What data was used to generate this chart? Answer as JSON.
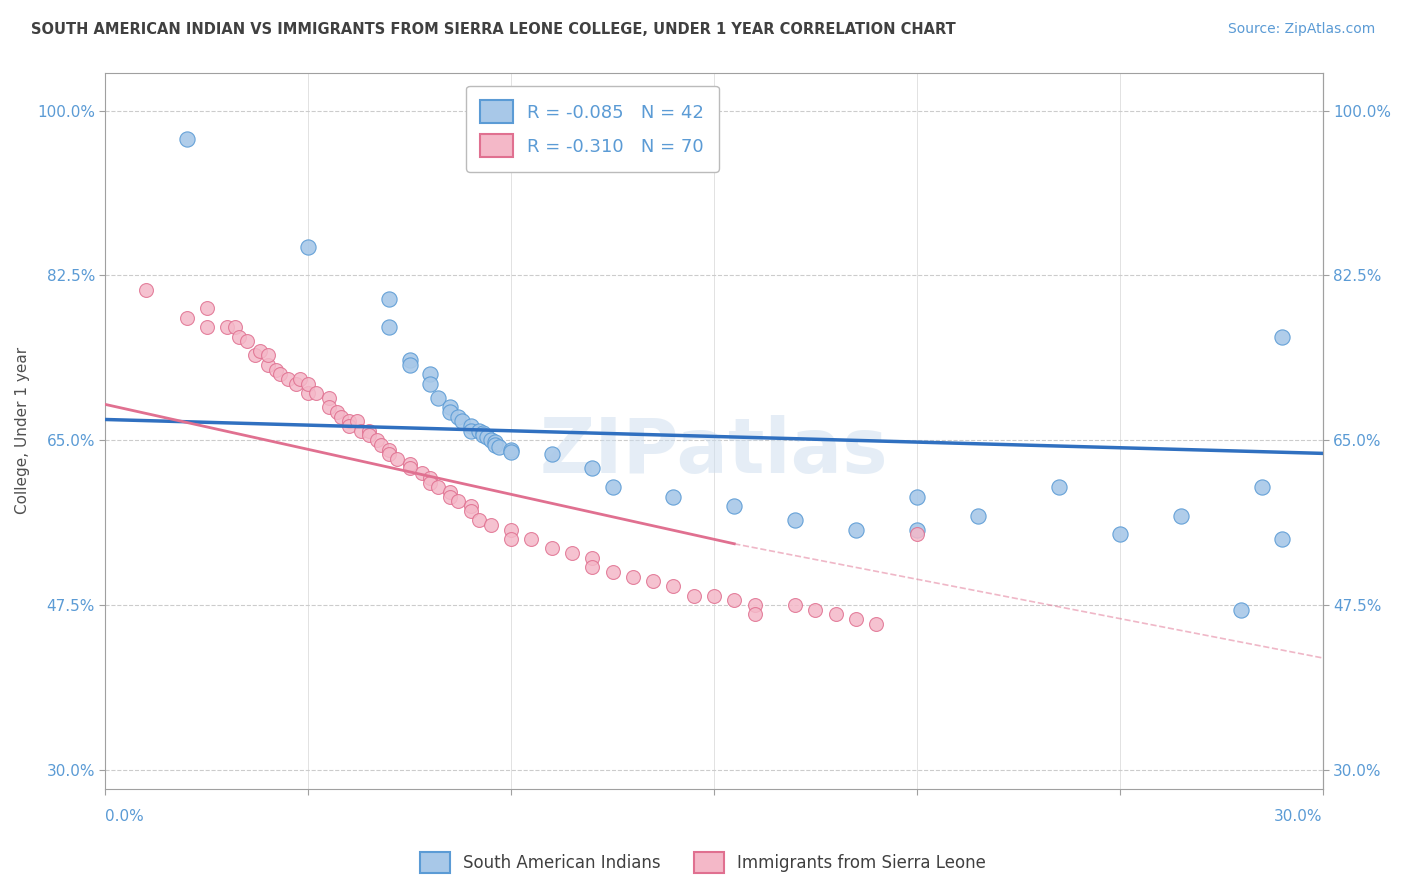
{
  "title": "SOUTH AMERICAN INDIAN VS IMMIGRANTS FROM SIERRA LEONE COLLEGE, UNDER 1 YEAR CORRELATION CHART",
  "source": "Source: ZipAtlas.com",
  "ylabel": "College, Under 1 year",
  "watermark": "ZIPatlas",
  "legend_blue_R": "-0.085",
  "legend_blue_N": "42",
  "legend_pink_R": "-0.310",
  "legend_pink_N": "70",
  "blue_color": "#A8C8E8",
  "blue_edge_color": "#5B9BD5",
  "pink_color": "#F4B8C8",
  "pink_edge_color": "#E07090",
  "blue_line_color": "#3070C0",
  "pink_line_color": "#E07090",
  "background_color": "#FFFFFF",
  "grid_color": "#CCCCCC",
  "axis_color": "#A0A0A0",
  "title_color": "#404040",
  "source_color": "#5B9BD5",
  "tick_color": "#5B9BD5",
  "xlim": [
    0.0,
    0.3
  ],
  "ylim": [
    0.28,
    1.04
  ],
  "yticks": [
    1.0,
    0.825,
    0.65,
    0.475,
    0.3
  ],
  "ytick_labels": [
    "100.0%",
    "82.5%",
    "65.0%",
    "47.5%",
    "30.0%"
  ],
  "blue_scatter_x": [
    0.02,
    0.05,
    0.07,
    0.07,
    0.075,
    0.075,
    0.08,
    0.08,
    0.082,
    0.085,
    0.085,
    0.087,
    0.088,
    0.09,
    0.09,
    0.092,
    0.093,
    0.093,
    0.094,
    0.095,
    0.096,
    0.096,
    0.097,
    0.1,
    0.1,
    0.11,
    0.12,
    0.125,
    0.14,
    0.155,
    0.17,
    0.185,
    0.2,
    0.2,
    0.215,
    0.235,
    0.25,
    0.265,
    0.285,
    0.29,
    0.29,
    0.28
  ],
  "blue_scatter_y": [
    0.97,
    0.855,
    0.8,
    0.77,
    0.735,
    0.73,
    0.72,
    0.71,
    0.695,
    0.685,
    0.68,
    0.675,
    0.67,
    0.665,
    0.66,
    0.66,
    0.658,
    0.655,
    0.653,
    0.65,
    0.648,
    0.645,
    0.643,
    0.64,
    0.638,
    0.635,
    0.62,
    0.6,
    0.59,
    0.58,
    0.565,
    0.555,
    0.59,
    0.555,
    0.57,
    0.6,
    0.55,
    0.57,
    0.6,
    0.76,
    0.545,
    0.47
  ],
  "pink_scatter_x": [
    0.01,
    0.02,
    0.025,
    0.025,
    0.03,
    0.032,
    0.033,
    0.035,
    0.037,
    0.038,
    0.04,
    0.04,
    0.042,
    0.043,
    0.045,
    0.047,
    0.048,
    0.05,
    0.05,
    0.052,
    0.055,
    0.055,
    0.057,
    0.058,
    0.06,
    0.06,
    0.062,
    0.063,
    0.065,
    0.065,
    0.067,
    0.068,
    0.07,
    0.07,
    0.072,
    0.075,
    0.075,
    0.078,
    0.08,
    0.08,
    0.082,
    0.085,
    0.085,
    0.087,
    0.09,
    0.09,
    0.092,
    0.095,
    0.1,
    0.1,
    0.105,
    0.11,
    0.115,
    0.12,
    0.12,
    0.125,
    0.13,
    0.135,
    0.14,
    0.145,
    0.15,
    0.155,
    0.16,
    0.16,
    0.17,
    0.175,
    0.18,
    0.185,
    0.19,
    0.2
  ],
  "pink_scatter_y": [
    0.81,
    0.78,
    0.79,
    0.77,
    0.77,
    0.77,
    0.76,
    0.755,
    0.74,
    0.745,
    0.73,
    0.74,
    0.725,
    0.72,
    0.715,
    0.71,
    0.715,
    0.7,
    0.71,
    0.7,
    0.695,
    0.685,
    0.68,
    0.675,
    0.67,
    0.665,
    0.67,
    0.66,
    0.66,
    0.655,
    0.65,
    0.645,
    0.64,
    0.635,
    0.63,
    0.625,
    0.62,
    0.615,
    0.61,
    0.605,
    0.6,
    0.595,
    0.59,
    0.585,
    0.58,
    0.575,
    0.565,
    0.56,
    0.555,
    0.545,
    0.545,
    0.535,
    0.53,
    0.525,
    0.515,
    0.51,
    0.505,
    0.5,
    0.495,
    0.485,
    0.485,
    0.48,
    0.475,
    0.465,
    0.475,
    0.47,
    0.465,
    0.46,
    0.455,
    0.55
  ],
  "blue_trend": [
    0.0,
    0.3,
    0.672,
    0.636
  ],
  "pink_trend_solid": [
    0.0,
    0.155,
    0.688,
    0.54
  ],
  "pink_trend_dashed": [
    0.155,
    0.46,
    0.54,
    0.285
  ]
}
